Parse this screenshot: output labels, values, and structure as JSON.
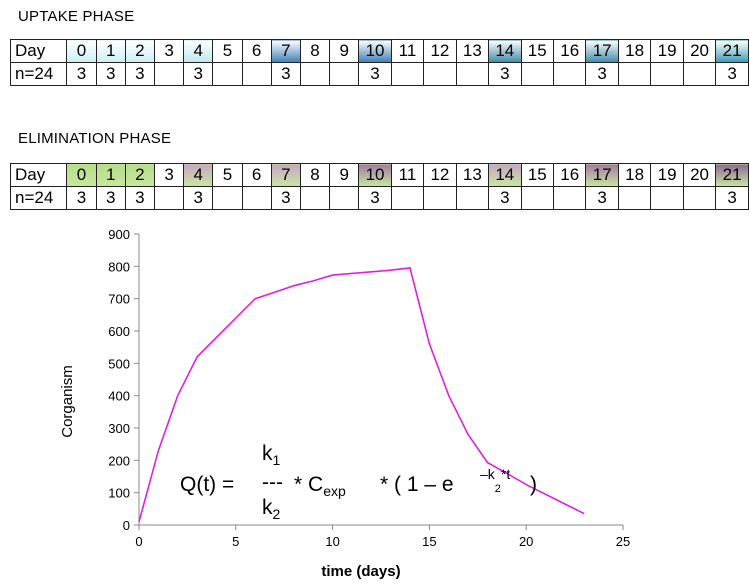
{
  "uptake": {
    "title": "UPTAKE PHASE",
    "row_day_label": "Day",
    "row_n_label": "n=24",
    "days": [
      "0",
      "1",
      "2",
      "3",
      "4",
      "5",
      "6",
      "7",
      "8",
      "9",
      "10",
      "11",
      "12",
      "13",
      "14",
      "15",
      "16",
      "17",
      "18",
      "19",
      "20",
      "21"
    ],
    "counts": [
      "3",
      "3",
      "3",
      "",
      "3",
      "",
      "",
      "3",
      "",
      "",
      "3",
      "",
      "",
      "",
      "3",
      "",
      "",
      "3",
      "",
      "",
      "",
      "3"
    ],
    "colors": {
      "0": "#cdeff4",
      "1": "#cdeff4",
      "2": "#cdeff4",
      "4": "#bfe8f0",
      "7": "#3f7fb8",
      "10": "#3f7fb8",
      "14": "#3f8aa8",
      "17": "#3f8aa8",
      "21": "#3f9ab6"
    }
  },
  "elimination": {
    "title": "ELIMINATION PHASE",
    "row_day_label": "Day",
    "row_n_label": "n=24",
    "days": [
      "0",
      "1",
      "2",
      "3",
      "4",
      "5",
      "6",
      "7",
      "8",
      "9",
      "10",
      "11",
      "12",
      "13",
      "14",
      "15",
      "16",
      "17",
      "18",
      "19",
      "20",
      "21"
    ],
    "counts": [
      "3",
      "3",
      "3",
      "",
      "3",
      "",
      "",
      "3",
      "",
      "",
      "3",
      "",
      "",
      "",
      "3",
      "",
      "",
      "3",
      "",
      "",
      "",
      "3"
    ],
    "colors": {
      "0": "#b7dd89",
      "1": "#b7dd89",
      "2": "#b7dd89",
      "4": "#c8a6c4",
      "7": "#c8a6c4",
      "10": "#a47aa4",
      "14": "#c8a6c4",
      "17": "#a47aa4",
      "21": "#8f6a95"
    }
  },
  "formula": {
    "lhs": "Q(t) =",
    "k1": "k",
    "k1_sub": "1",
    "dashes": "---",
    "k2": "k",
    "k2_sub": "2",
    "mid": "* C",
    "cexp_sub": "exp",
    "rhs": "* ( 1 – e",
    "exp_sup": "–k",
    "exp_sup_sub": "2",
    "exp_sup_end": "*t",
    "close": ")"
  },
  "chart_data": {
    "type": "line",
    "xlabel": "time (days)",
    "ylabel": "Corganism",
    "xlim": [
      0,
      25
    ],
    "ylim": [
      0,
      900
    ],
    "xticks": [
      0,
      5,
      10,
      15,
      20,
      25
    ],
    "yticks": [
      0,
      100,
      200,
      300,
      400,
      500,
      600,
      700,
      800,
      900
    ],
    "grid": false,
    "series": [
      {
        "color": "#e020e0",
        "x": [
          0,
          1,
          2,
          3,
          4,
          5,
          6,
          7,
          8,
          9,
          10,
          11,
          12,
          13,
          14,
          15,
          16,
          17,
          18,
          19,
          20,
          21,
          22,
          23
        ],
        "y": [
          10,
          230,
          400,
          520,
          580,
          640,
          700,
          720,
          740,
          755,
          773,
          778,
          783,
          788,
          795,
          560,
          400,
          280,
          193,
          160,
          125,
          95,
          65,
          35
        ]
      }
    ]
  }
}
